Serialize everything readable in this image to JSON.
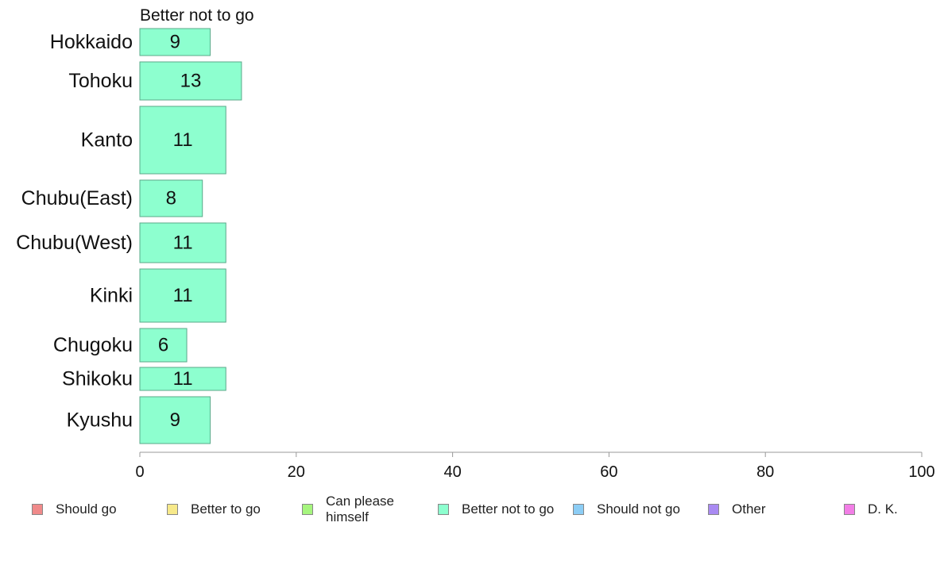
{
  "chart_data": {
    "type": "bar",
    "orientation": "horizontal",
    "title": "Better not to go",
    "categories": [
      "Hokkaido",
      "Tohoku",
      "Kanto",
      "Chubu(East)",
      "Chubu(West)",
      "Kinki",
      "Chugoku",
      "Shikoku",
      "Kyushu"
    ],
    "values": [
      9,
      13,
      11,
      8,
      11,
      11,
      6,
      11,
      9
    ],
    "xlim": [
      0,
      100
    ],
    "xticks": [
      "0",
      "20",
      "40",
      "60",
      "80",
      "100"
    ],
    "grid": false,
    "bar_color": "#8dffcf",
    "legend_position": "bottom",
    "legend": [
      {
        "label": "Should go",
        "color": "#f08a8a"
      },
      {
        "label": "Better to go",
        "color": "#f7e98a"
      },
      {
        "label": "Can please himself",
        "color": "#a6f57e"
      },
      {
        "label": "Better not to go",
        "color": "#8dffcf"
      },
      {
        "label": "Should not go",
        "color": "#8ccdf5"
      },
      {
        "label": "Other",
        "color": "#a98af2"
      },
      {
        "label": "D. K.",
        "color": "#f27ee6"
      }
    ]
  }
}
